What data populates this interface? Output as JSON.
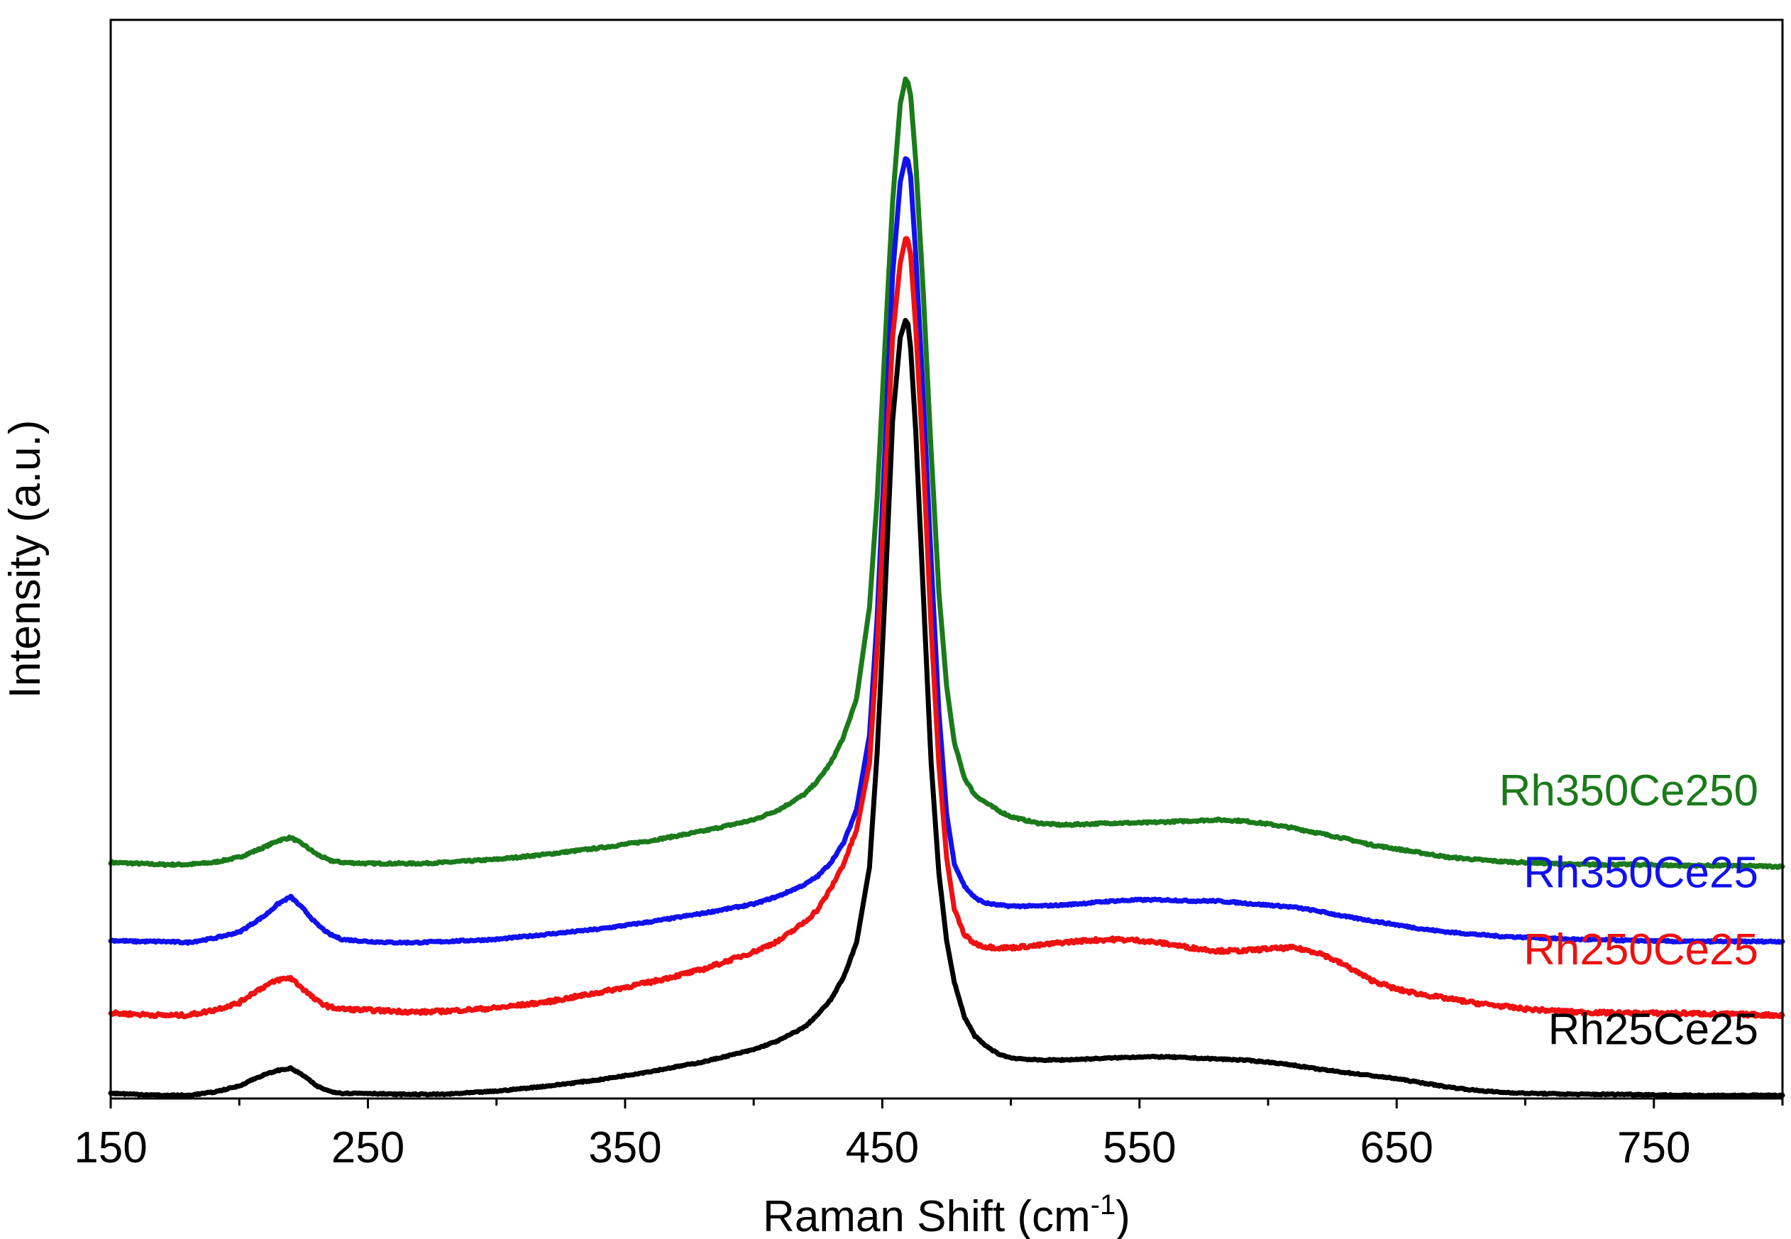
{
  "chart_data": {
    "type": "line",
    "title": "",
    "xlabel": "Raman  Shift (cm",
    "xlabel_sup": "-1",
    "xlabel_close": ")",
    "ylabel": "Intensity (a.u.)",
    "xlim": [
      150,
      800
    ],
    "ylim": [
      0,
      100
    ],
    "x_ticks": [
      150,
      250,
      350,
      450,
      550,
      650,
      750
    ],
    "x_minor_ticks": [
      200,
      300,
      400,
      500,
      600,
      700,
      800
    ],
    "grid": false,
    "legend": "inline labels at right",
    "x": [
      150,
      160,
      170,
      180,
      190,
      200,
      205,
      210,
      215,
      220,
      225,
      230,
      235,
      240,
      250,
      260,
      270,
      280,
      300,
      320,
      340,
      360,
      380,
      400,
      410,
      420,
      425,
      430,
      435,
      440,
      445,
      448,
      451,
      454,
      457,
      459,
      460,
      461,
      463,
      466,
      469,
      472,
      475,
      478,
      482,
      486,
      490,
      495,
      500,
      510,
      520,
      530,
      540,
      550,
      560,
      570,
      580,
      590,
      600,
      610,
      620,
      630,
      640,
      650,
      660,
      670,
      680,
      690,
      700,
      720,
      740,
      760,
      780,
      800
    ],
    "series": [
      {
        "name": "Rh350Ce250",
        "color": "#1b7a1b",
        "values": [
          22.5,
          22.4,
          22.3,
          22.3,
          22.5,
          23.0,
          23.5,
          24.0,
          24.6,
          24.9,
          24.2,
          23.3,
          22.7,
          22.5,
          22.4,
          22.4,
          22.4,
          22.5,
          22.8,
          23.3,
          23.9,
          24.6,
          25.5,
          26.6,
          27.6,
          29.1,
          30.4,
          32.1,
          34.6,
          38.3,
          47.0,
          57.5,
          72.0,
          86.0,
          95.5,
          97.8,
          97.5,
          96.3,
          90.0,
          77.0,
          62.0,
          48.5,
          39.5,
          34.0,
          30.6,
          29.0,
          28.3,
          27.5,
          26.9,
          26.3,
          26.1,
          26.2,
          26.3,
          26.3,
          26.4,
          26.5,
          26.6,
          26.5,
          26.2,
          25.8,
          25.3,
          24.8,
          24.2,
          23.8,
          23.4,
          23.0,
          22.8,
          22.6,
          22.5,
          22.3,
          22.3,
          22.2,
          22.2,
          22.1
        ]
      },
      {
        "name": "Rh350Ce25",
        "color": "#1111ee",
        "values": [
          15.0,
          14.9,
          14.9,
          14.8,
          15.2,
          15.8,
          16.6,
          17.4,
          18.5,
          19.2,
          18.0,
          16.6,
          15.6,
          15.1,
          14.9,
          14.8,
          14.8,
          14.9,
          15.1,
          15.6,
          16.1,
          16.8,
          17.6,
          18.5,
          19.3,
          20.4,
          21.2,
          22.5,
          24.4,
          27.6,
          34.7,
          46.0,
          62.0,
          79.0,
          88.0,
          90.2,
          90.0,
          88.5,
          81.0,
          67.0,
          51.5,
          37.0,
          27.2,
          22.4,
          20.2,
          19.1,
          18.6,
          18.4,
          18.3,
          18.3,
          18.4,
          18.6,
          18.8,
          18.9,
          18.9,
          18.8,
          18.8,
          18.6,
          18.4,
          18.2,
          17.8,
          17.3,
          16.9,
          16.5,
          16.1,
          15.8,
          15.6,
          15.4,
          15.3,
          15.1,
          15.0,
          14.9,
          14.9,
          14.9
        ]
      },
      {
        "name": "Rh250Ce25",
        "color": "#ee1111",
        "values": [
          8.0,
          7.9,
          7.8,
          7.8,
          8.3,
          9.0,
          9.9,
          10.6,
          11.2,
          11.4,
          10.3,
          9.2,
          8.6,
          8.4,
          8.3,
          8.2,
          8.1,
          8.2,
          8.5,
          9.1,
          10.0,
          11.0,
          12.2,
          13.9,
          15.0,
          16.8,
          18.0,
          20.0,
          22.4,
          25.6,
          32.0,
          43.0,
          58.0,
          73.0,
          80.2,
          82.5,
          82.3,
          81.0,
          74.0,
          61.0,
          45.0,
          32.0,
          23.0,
          18.0,
          15.5,
          14.7,
          14.4,
          14.3,
          14.3,
          14.5,
          14.8,
          15.0,
          15.1,
          15.0,
          14.7,
          14.3,
          14.0,
          14.0,
          14.2,
          14.3,
          13.8,
          12.6,
          11.2,
          10.3,
          9.8,
          9.4,
          9.0,
          8.7,
          8.4,
          8.1,
          8.0,
          8.0,
          7.9,
          7.8
        ]
      },
      {
        "name": "Rh25Ce25",
        "color": "#000000",
        "values": [
          0.3,
          0.2,
          0.1,
          0.1,
          0.4,
          1.0,
          1.6,
          2.1,
          2.5,
          2.7,
          2.0,
          1.0,
          0.5,
          0.3,
          0.3,
          0.2,
          0.2,
          0.2,
          0.5,
          1.0,
          1.6,
          2.4,
          3.3,
          4.5,
          5.4,
          6.7,
          7.9,
          9.3,
          11.5,
          14.8,
          22.0,
          33.0,
          48.0,
          65.0,
          73.0,
          74.6,
          74.3,
          72.0,
          64.0,
          48.0,
          32.0,
          21.5,
          15.0,
          11.0,
          7.6,
          5.8,
          4.9,
          4.1,
          3.7,
          3.5,
          3.5,
          3.6,
          3.7,
          3.8,
          3.8,
          3.7,
          3.6,
          3.5,
          3.3,
          3.0,
          2.6,
          2.3,
          2.0,
          1.7,
          1.3,
          0.9,
          0.6,
          0.4,
          0.3,
          0.2,
          0.2,
          0.1,
          0.1,
          0.1
        ]
      }
    ],
    "labels": [
      {
        "text": "Rh350Ce250",
        "series": "Rh350Ce250",
        "color": "#1b7a1b",
        "y": 26.5
      },
      {
        "text": "Rh350Ce25",
        "series": "Rh350Ce25",
        "color": "#1111ee",
        "y": 18.6
      },
      {
        "text": "Rh250Ce25",
        "series": "Rh250Ce25",
        "color": "#ee1111",
        "y": 11.2
      },
      {
        "text": "Rh25Ce25",
        "series": "Rh25Ce25",
        "color": "#000000",
        "y": 3.5
      }
    ]
  }
}
